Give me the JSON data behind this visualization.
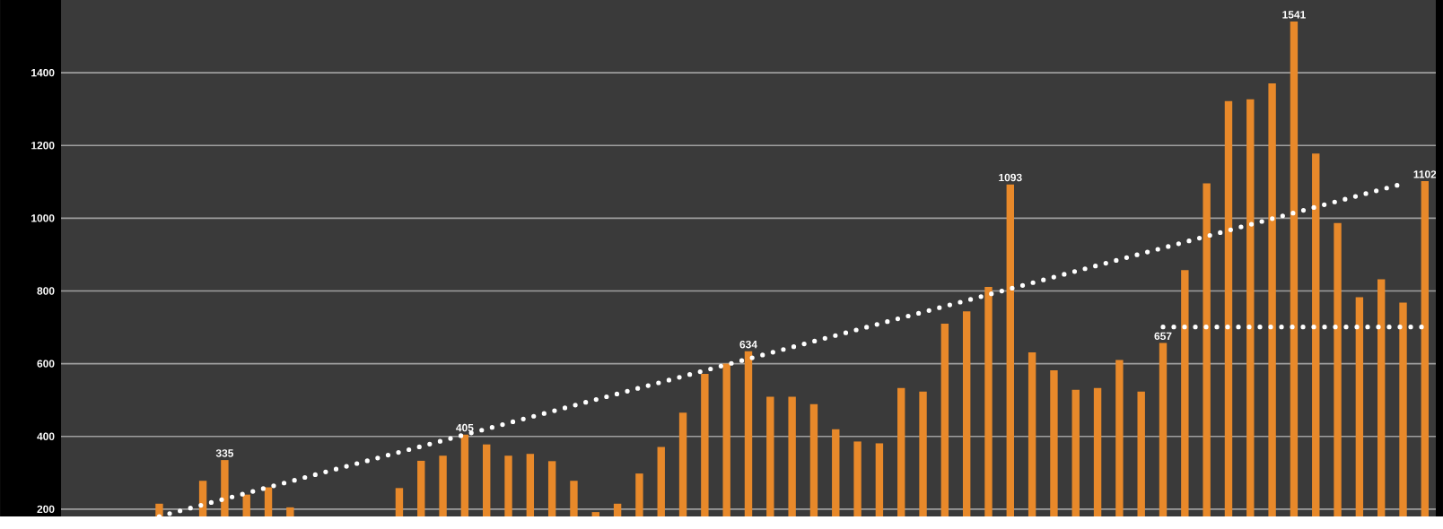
{
  "chart_data": {
    "type": "bar",
    "categories": [
      null,
      null,
      null,
      null,
      null,
      null,
      null,
      null,
      null,
      null,
      null,
      null,
      null,
      null,
      null,
      null,
      null,
      null,
      null,
      null,
      null,
      null,
      null,
      null,
      null,
      null,
      null,
      null,
      null,
      null,
      null,
      null,
      null,
      null,
      null,
      null,
      null,
      null,
      null,
      null,
      null,
      null,
      null,
      null,
      null,
      null,
      null,
      null,
      null,
      null,
      null,
      null,
      null,
      null,
      null,
      null,
      null,
      null,
      null,
      null,
      null,
      null,
      null
    ],
    "ylim": [
      180,
      1600
    ],
    "yticks": [
      200,
      400,
      600,
      800,
      1000,
      1200,
      1400
    ],
    "grid": "y",
    "series": [
      {
        "color": "#e8892a",
        "values": [
          null,
          null,
          null,
          null,
          215,
          null,
          278,
          335,
          240,
          260,
          205,
          null,
          null,
          null,
          null,
          258,
          333,
          347,
          405,
          378,
          347,
          352,
          332,
          278,
          192,
          215,
          298,
          371,
          465,
          572,
          600,
          634,
          509,
          509,
          489,
          420,
          386,
          381,
          533,
          523,
          710,
          744,
          811,
          1093,
          631,
          582,
          528,
          533,
          610,
          523,
          657,
          857,
          1096,
          1322,
          1327,
          1371,
          1541,
          1178,
          987,
          783,
          832,
          768,
          1102
        ],
        "value_labels": [
          null,
          null,
          null,
          null,
          null,
          null,
          null,
          "335",
          null,
          null,
          null,
          null,
          null,
          null,
          null,
          null,
          null,
          null,
          "405",
          null,
          null,
          null,
          null,
          null,
          null,
          null,
          null,
          null,
          null,
          null,
          null,
          "634",
          null,
          null,
          null,
          null,
          null,
          null,
          null,
          null,
          null,
          null,
          null,
          "1093",
          null,
          null,
          null,
          null,
          null,
          null,
          "657",
          null,
          null,
          null,
          null,
          null,
          "1541",
          null,
          null,
          null,
          null,
          null,
          "1102"
        ]
      },
      {
        "type": "line",
        "color": "#ffffff",
        "line_style": "dotted",
        "values": [
          null,
          null,
          null,
          null,
          180,
          null,
          null,
          null,
          null,
          null,
          null,
          null,
          null,
          null,
          null,
          null,
          null,
          null,
          null,
          null,
          null,
          null,
          null,
          null,
          null,
          null,
          null,
          null,
          null,
          null,
          null,
          null,
          null,
          null,
          null,
          null,
          null,
          null,
          null,
          null,
          null,
          null,
          null,
          null,
          null,
          null,
          null,
          null,
          null,
          null,
          null,
          null,
          null,
          null,
          null,
          null,
          null,
          null,
          null,
          null,
          null,
          1095,
          null
        ]
      },
      {
        "type": "line",
        "color": "#ffffff",
        "line_style": "dotted",
        "values": [
          null,
          null,
          null,
          null,
          null,
          null,
          null,
          null,
          null,
          null,
          null,
          null,
          null,
          null,
          null,
          null,
          null,
          null,
          null,
          null,
          null,
          null,
          null,
          null,
          null,
          null,
          null,
          null,
          null,
          null,
          null,
          null,
          null,
          null,
          null,
          null,
          null,
          null,
          null,
          null,
          null,
          null,
          null,
          null,
          null,
          null,
          null,
          null,
          null,
          null,
          701,
          null,
          null,
          null,
          null,
          null,
          null,
          null,
          null,
          null,
          null,
          null,
          701
        ]
      }
    ]
  }
}
